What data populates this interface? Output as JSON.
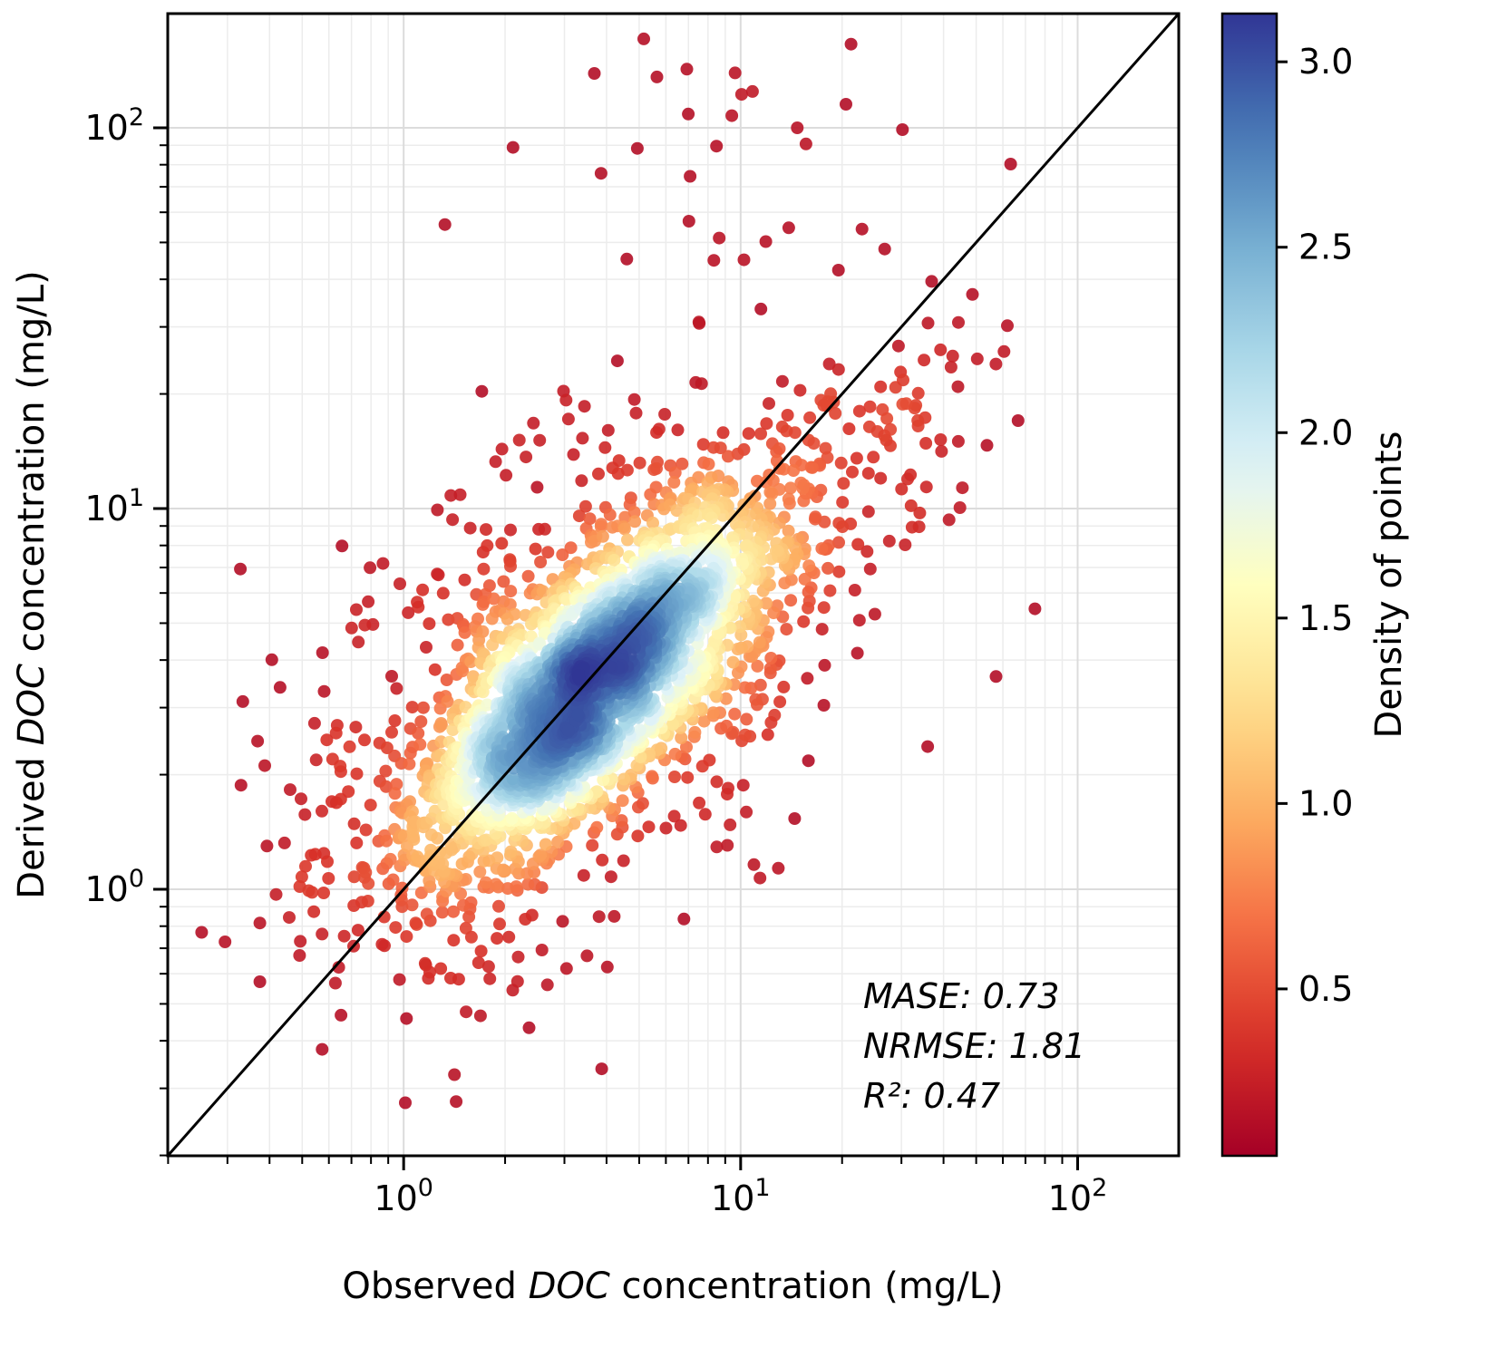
{
  "figure": {
    "background": "#ffffff"
  },
  "chart_data": {
    "type": "scatter",
    "subtype": "density-scatter",
    "xlabel": {
      "pre": "Observed ",
      "em": "DOC",
      "post": " concentration (mg/L)"
    },
    "ylabel": {
      "pre": "Derived ",
      "em": "DOC",
      "post": " concentration (mg/L)"
    },
    "x_scale": "log",
    "y_scale": "log",
    "x_range": [
      0.2,
      200
    ],
    "y_range": [
      0.2,
      200
    ],
    "log_range": [
      -0.7,
      2.3
    ],
    "major_ticks": [
      {
        "value": 1,
        "exp": "0"
      },
      {
        "value": 10,
        "exp": "1"
      },
      {
        "value": 100,
        "exp": "2"
      }
    ],
    "identity_line": {
      "present": true,
      "color": "#000000",
      "width": 3
    },
    "annotations": [
      "MASE: 0.73",
      "NRMSE: 1.81",
      "R²: 0.47"
    ],
    "colorbar": {
      "label": "Density of points",
      "vmin": 0.05,
      "vmax": 3.13,
      "ticks": [
        0.5,
        1.0,
        1.5,
        2.0,
        2.5,
        3.0
      ],
      "colormap": "RdYlBu"
    },
    "colormap_anchors": [
      "#a50026",
      "#d73027",
      "#f46d43",
      "#fdae61",
      "#fee090",
      "#ffffbf",
      "#e0f3f8",
      "#abd9e9",
      "#74add1",
      "#4575b4",
      "#313695"
    ],
    "grid": {
      "major_color": "#dcdcdc",
      "minor_color": "#ececec"
    },
    "distribution": {
      "seed": 7,
      "marker_radius": 7,
      "alpha": 0.9,
      "density_exponent": 0.75,
      "clusters": [
        {
          "n": 2400,
          "cx": 0.58,
          "cy": 0.555,
          "sx": 0.28,
          "sy": 0.25,
          "rho": 0.74
        },
        {
          "n": 650,
          "cx": 0.58,
          "cy": 0.58,
          "sx": 0.46,
          "sy": 0.42,
          "rho": 0.5
        },
        {
          "n": 22,
          "cx": 1.0,
          "cy": 2.0,
          "sx": 0.35,
          "sy": 0.18,
          "rho": 0.1
        },
        {
          "n": 30,
          "cx": 1.5,
          "cy": 1.3,
          "sx": 0.2,
          "sy": 0.18,
          "rho": 0.3
        }
      ]
    }
  }
}
